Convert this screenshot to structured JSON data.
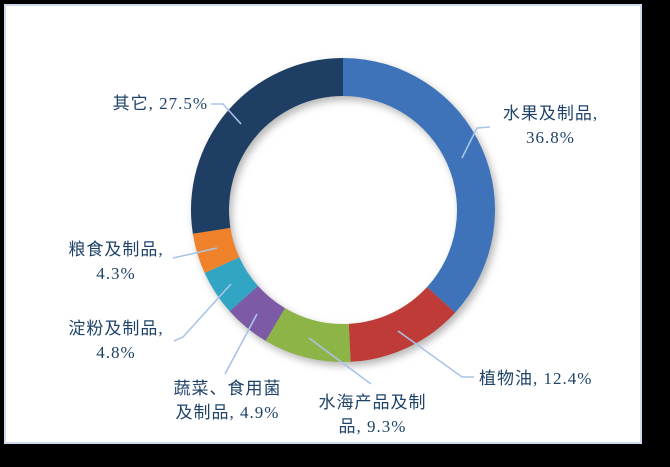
{
  "frame": {
    "background_color": "#000000",
    "panel_background": "#ffffff",
    "panel_border_color": "#cedcee"
  },
  "chart_data": {
    "type": "pie",
    "subtype": "donut",
    "title": "",
    "start_angle_deg": 0,
    "direction": "clockwise",
    "donut_hole_ratio": 0.75,
    "legend_position": "none",
    "labels_style": "outside-callout-with-leader-lines",
    "label_color": "#1f4368",
    "leader_line_color": "#a9c4e8",
    "categories": [
      "水果及制品",
      "植物油",
      "水海产品及制品",
      "蔬菜、食用菌及制品",
      "淀粉及制品",
      "粮食及制品",
      "其它"
    ],
    "values": [
      36.8,
      12.4,
      9.3,
      4.9,
      4.8,
      4.3,
      27.5
    ],
    "slices": [
      {
        "category": "水果及制品",
        "value_pct": 36.8,
        "color": "#3e73b9",
        "label_lines": [
          "水果及制品,",
          "36.8%"
        ]
      },
      {
        "category": "植物油",
        "value_pct": 12.4,
        "color": "#be3b38",
        "label_lines": [
          "植物油, 12.4%"
        ]
      },
      {
        "category": "水海产品及制品",
        "value_pct": 9.3,
        "color": "#8cb446",
        "label_lines": [
          "水海产品及制",
          "品, 9.3%"
        ]
      },
      {
        "category": "蔬菜、食用菌及制品",
        "value_pct": 4.9,
        "color": "#7d5aa6",
        "label_lines": [
          "蔬菜、食用菌",
          "及制品, 4.9%"
        ]
      },
      {
        "category": "淀粉及制品",
        "value_pct": 4.8,
        "color": "#31a5c3",
        "label_lines": [
          "淀粉及制品,",
          "4.8%"
        ]
      },
      {
        "category": "粮食及制品",
        "value_pct": 4.3,
        "color": "#f0822c",
        "label_lines": [
          "粮食及制品,",
          "4.3%"
        ]
      },
      {
        "category": "其它",
        "value_pct": 27.5,
        "color": "#1f3e63",
        "label_lines": [
          "其它, 27.5%"
        ]
      }
    ]
  }
}
